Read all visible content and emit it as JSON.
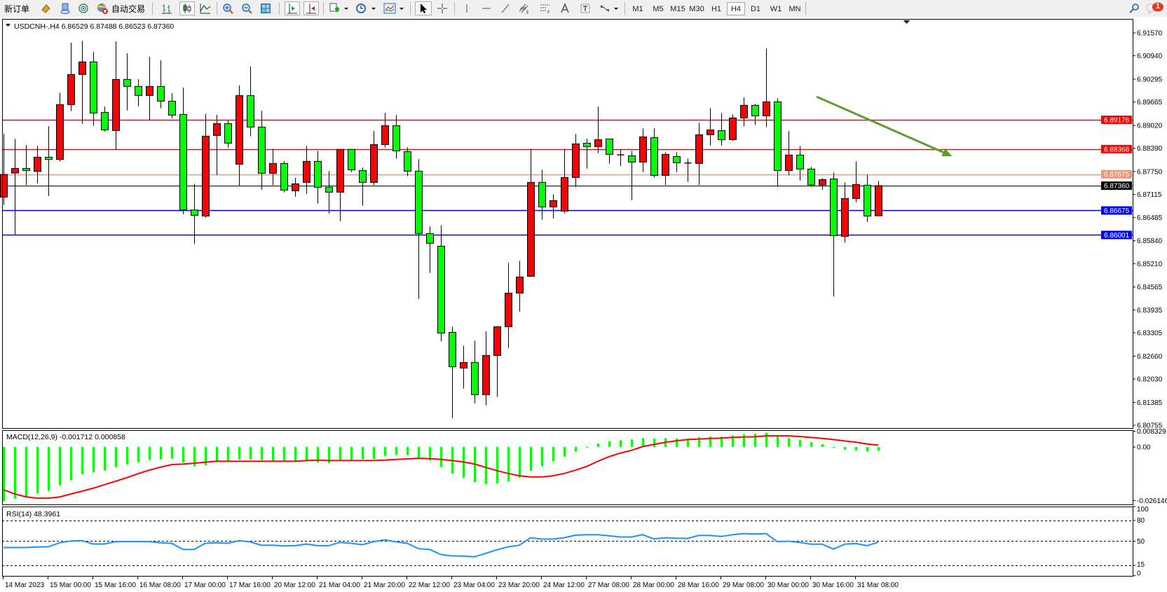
{
  "toolbar": {
    "new_order_label": "新订单",
    "auto_trading_label": "自动交易",
    "timeframes": [
      "M1",
      "M5",
      "M15",
      "M30",
      "H1",
      "H4",
      "D1",
      "W1",
      "MN"
    ],
    "active_timeframe": "H4",
    "notification_count": "1"
  },
  "chart": {
    "header": "USDCNH-,H4  6.86529 6.87488 6.86523 6.87360",
    "macd_label": "MACD(12,26,9) -0.001712 0.000858",
    "rsi_label": "RSI(14) 48.3961"
  },
  "chart_data": {
    "type": "candlestick",
    "symbol": "USDCNH-",
    "timeframe": "H4",
    "ohlc_fields": [
      "open",
      "high",
      "low",
      "close"
    ],
    "colors": {
      "bull": "#ff0000",
      "bear": "#00ff00",
      "outline": "#000000"
    },
    "candles": [
      [
        6.87044,
        6.88783,
        6.86832,
        6.87669
      ],
      [
        6.87708,
        6.88647,
        6.86014,
        6.87836
      ],
      [
        6.87836,
        6.88474,
        6.87373,
        6.87778
      ],
      [
        6.87753,
        6.88454,
        6.87424,
        6.88145
      ],
      [
        6.88145,
        6.89002,
        6.87077,
        6.88081
      ],
      [
        6.88081,
        6.89922,
        6.88023,
        6.89594
      ],
      [
        6.89594,
        6.913,
        6.89414,
        6.90424
      ],
      [
        6.90424,
        6.91351,
        6.89066,
        6.90772
      ],
      [
        6.90772,
        6.91049,
        6.89008,
        6.89362
      ],
      [
        6.89381,
        6.89542,
        6.88854,
        6.88899
      ],
      [
        6.88879,
        6.91332,
        6.88351,
        6.90289
      ],
      [
        6.90289,
        6.9101,
        6.89433,
        6.90096
      ],
      [
        6.90096,
        6.90296,
        6.89549,
        6.89845
      ],
      [
        6.89845,
        6.90914,
        6.89163,
        6.90096
      ],
      [
        6.90096,
        6.90817,
        6.89491,
        6.8969
      ],
      [
        6.8969,
        6.89909,
        6.89214,
        6.89304
      ],
      [
        6.89324,
        6.90064,
        6.86574,
        6.8669
      ],
      [
        6.8669,
        6.87411,
        6.8575,
        6.86542
      ],
      [
        6.86523,
        6.89343,
        6.86478,
        6.88725
      ],
      [
        6.88744,
        6.89311,
        6.87656,
        6.89072
      ],
      [
        6.89072,
        6.8915,
        6.88409,
        6.88532
      ],
      [
        6.87952,
        6.90122,
        6.87347,
        6.89845
      ],
      [
        6.89845,
        6.90643,
        6.88718,
        6.88976
      ],
      [
        6.88976,
        6.89427,
        6.8725,
        6.87701
      ],
      [
        6.87701,
        6.88377,
        6.87373,
        6.87972
      ],
      [
        6.87972,
        6.88036,
        6.87173,
        6.87238
      ],
      [
        6.87218,
        6.87572,
        6.87057,
        6.87411
      ],
      [
        6.8745,
        6.88454,
        6.87134,
        6.88029
      ],
      [
        6.88029,
        6.88319,
        6.86864,
        6.87315
      ],
      [
        6.87315,
        6.87759,
        6.86594,
        6.8718
      ],
      [
        6.8718,
        6.88358,
        6.86381,
        6.88358
      ],
      [
        6.88358,
        6.8837,
        6.87733,
        6.87798
      ],
      [
        6.87778,
        6.87855,
        6.86806,
        6.8745
      ],
      [
        6.8745,
        6.88866,
        6.87373,
        6.88493
      ],
      [
        6.88493,
        6.89368,
        6.88409,
        6.89014
      ],
      [
        6.89014,
        6.8931,
        6.881,
        6.88319
      ],
      [
        6.883,
        6.88416,
        6.87624,
        6.87759
      ],
      [
        6.87759,
        6.88087,
        6.84237,
        6.8604
      ],
      [
        6.8604,
        6.86233,
        6.84952,
        6.8577
      ],
      [
        6.85692,
        6.86272,
        6.83066,
        6.83297
      ],
      [
        6.83317,
        6.83471,
        6.80954,
        6.8237
      ],
      [
        6.82332,
        6.8295,
        6.81765,
        6.82486
      ],
      [
        6.82486,
        6.83085,
        6.8136,
        6.81598
      ],
      [
        6.81598,
        6.83342,
        6.81302,
        6.82679
      ],
      [
        6.82679,
        6.8349,
        6.81533,
        6.83471
      ],
      [
        6.83471,
        6.85229,
        6.82885,
        6.84398
      ],
      [
        6.84398,
        6.85287,
        6.8389,
        6.84842
      ],
      [
        6.84862,
        6.88377,
        6.84862,
        6.8745
      ],
      [
        6.8745,
        6.87798,
        6.8642,
        6.86774
      ],
      [
        6.86774,
        6.87122,
        6.86458,
        6.86948
      ],
      [
        6.86658,
        6.88377,
        6.86594,
        6.87585
      ],
      [
        6.87585,
        6.88782,
        6.87327,
        6.88512
      ],
      [
        6.88531,
        6.88654,
        6.8783,
        6.88435
      ],
      [
        6.88435,
        6.89536,
        6.88255,
        6.88628
      ],
      [
        6.88647,
        6.88647,
        6.87965,
        6.88222
      ],
      [
        6.88209,
        6.88358,
        6.87907,
        6.88209
      ],
      [
        6.88184,
        6.88319,
        6.8696,
        6.8801
      ],
      [
        6.8801,
        6.88937,
        6.87733,
        6.88705
      ],
      [
        6.88686,
        6.88937,
        6.87585,
        6.87643
      ],
      [
        6.87643,
        6.8828,
        6.87379,
        6.88222
      ],
      [
        6.88164,
        6.8828,
        6.87733,
        6.87991
      ],
      [
        6.87984,
        6.88106,
        6.87463,
        6.87984
      ],
      [
        6.87971,
        6.89091,
        6.87379,
        6.88763
      ],
      [
        6.88763,
        6.89497,
        6.88467,
        6.88898
      ],
      [
        6.88879,
        6.89362,
        6.88467,
        6.88628
      ],
      [
        6.88628,
        6.89323,
        6.88602,
        6.89227
      ],
      [
        6.89227,
        6.89787,
        6.88995,
        6.89574
      ],
      [
        6.89574,
        6.89613,
        6.89034,
        6.89285
      ],
      [
        6.89285,
        6.91139,
        6.88976,
        6.89671
      ],
      [
        6.89671,
        6.89767,
        6.87327,
        6.87778
      ],
      [
        6.87778,
        6.8886,
        6.87643,
        6.88203
      ],
      [
        6.88203,
        6.88454,
        6.87501,
        6.87817
      ],
      [
        6.87817,
        6.87875,
        6.87327,
        6.87379
      ],
      [
        6.87379,
        6.87566,
        6.8725,
        6.87527
      ],
      [
        6.87546,
        6.8772,
        6.84302,
        6.85982
      ],
      [
        6.85963,
        6.8745,
        6.85789,
        6.87006
      ],
      [
        6.87006,
        6.88029,
        6.86903,
        6.87392
      ],
      [
        6.87373,
        6.87662,
        6.86362,
        6.86523
      ],
      [
        6.86529,
        6.87488,
        6.86523,
        6.8736
      ]
    ],
    "price_range": [
      6.80755,
      6.9157
    ],
    "price_ticks": [
      "6.91570",
      "6.90940",
      "6.90295",
      "6.89665",
      "6.89020",
      "6.88390",
      "6.87750",
      "6.87115",
      "6.86485",
      "6.85840",
      "6.85210",
      "6.84565",
      "6.83935",
      "6.83305",
      "6.82660",
      "6.82030",
      "6.81385",
      "6.80755"
    ],
    "horizontal_lines": [
      {
        "price": "6.89176",
        "color": "#ff0000"
      },
      {
        "price": "6.88368",
        "color": "#ff0000"
      },
      {
        "price": "6.87675",
        "color": "#e9967a"
      },
      {
        "price": "6.87360",
        "color": "#000000"
      },
      {
        "price": "6.86675",
        "color": "#0000ff"
      },
      {
        "price": "6.86001",
        "color": "#0000ff"
      }
    ],
    "arrow": {
      "from": {
        "bar": 72.5,
        "price": 6.89813
      },
      "to": {
        "bar": 84.6,
        "price": 6.88171
      },
      "color": "#5a9e2f"
    },
    "time_labels": [
      "14 Mar 2023",
      "15 Mar 00:00",
      "15 Mar 16:00",
      "16 Mar 08:00",
      "17 Mar 00:00",
      "17 Mar 16:00",
      "20 Mar 12:00",
      "21 Mar 04:00",
      "21 Mar 20:00",
      "22 Mar 12:00",
      "23 Mar 04:00",
      "23 Mar 20:00",
      "24 Mar 12:00",
      "27 Mar 08:00",
      "28 Mar 00:00",
      "28 Mar 16:00",
      "29 Mar 08:00",
      "30 Mar 00:00",
      "30 Mar 16:00",
      "31 Mar 08:00"
    ],
    "macd": {
      "range": [
        -0.026146,
        0.008329
      ],
      "ticks": [
        "0.008329",
        "0.00",
        "-0.026146"
      ],
      "histogram_color": "#00ff00",
      "signal_color": "#ff0000",
      "main": [
        -0.02458,
        -0.02352,
        -0.02245,
        -0.02117,
        -0.02,
        -0.01745,
        -0.015,
        -0.01234,
        -0.01149,
        -0.01075,
        -0.00915,
        -0.00787,
        -0.00692,
        -0.00596,
        -0.00564,
        -0.00521,
        -0.00702,
        -0.00883,
        -0.0083,
        -0.00681,
        -0.00628,
        -0.00564,
        -0.00543,
        -0.00596,
        -0.00617,
        -0.00628,
        -0.00649,
        -0.00628,
        -0.00702,
        -0.00723,
        -0.00617,
        -0.00596,
        -0.00543,
        -0.00543,
        -0.00404,
        -0.00362,
        -0.00362,
        -0.00489,
        -0.00617,
        -0.00915,
        -0.01203,
        -0.01394,
        -0.01607,
        -0.01681,
        -0.0166,
        -0.01553,
        -0.01394,
        -0.01075,
        -0.00862,
        -0.00649,
        -0.00436,
        -0.00202,
        -0.00011,
        0.0016,
        0.00255,
        0.00309,
        0.00351,
        0.00415,
        0.00383,
        0.00415,
        0.00383,
        0.00394,
        0.00447,
        0.00479,
        0.00479,
        0.00521,
        0.00575,
        0.00607,
        0.00639,
        0.005,
        0.00415,
        0.0033,
        0.00224,
        0.00128,
        -0.00011,
        -0.00117,
        -0.00149,
        -0.00202,
        -0.001712
      ],
      "signal": [
        -0.01947,
        -0.02138,
        -0.02266,
        -0.0233,
        -0.0233,
        -0.02277,
        -0.02138,
        -0.02011,
        -0.01873,
        -0.01713,
        -0.01553,
        -0.01394,
        -0.01213,
        -0.01053,
        -0.00915,
        -0.00798,
        -0.00777,
        -0.00734,
        -0.00692,
        -0.00649,
        -0.00649,
        -0.00649,
        -0.00649,
        -0.00649,
        -0.00649,
        -0.00649,
        -0.00649,
        -0.00617,
        -0.00596,
        -0.00617,
        -0.00617,
        -0.00617,
        -0.00617,
        -0.00617,
        -0.00596,
        -0.00564,
        -0.00543,
        -0.00511,
        -0.00532,
        -0.00564,
        -0.00617,
        -0.00681,
        -0.00777,
        -0.00926,
        -0.01075,
        -0.01203,
        -0.01309,
        -0.01362,
        -0.01362,
        -0.01309,
        -0.01203,
        -0.01053,
        -0.00883,
        -0.00649,
        -0.00436,
        -0.00277,
        -0.00149,
        0.00021,
        0.00117,
        0.00213,
        0.00288,
        0.00341,
        0.00362,
        0.00394,
        0.00404,
        0.00436,
        0.00458,
        0.00468,
        0.00511,
        0.00511,
        0.00511,
        0.00479,
        0.00436,
        0.00394,
        0.00341,
        0.00277,
        0.00224,
        0.00139,
        0.000858
      ]
    },
    "rsi": {
      "range": [
        0,
        100
      ],
      "ticks": [
        "100",
        "80",
        "50",
        "15",
        "0"
      ],
      "levels": [
        80,
        50,
        15
      ],
      "color": "#1e90ff",
      "values": [
        40.7,
        40.7,
        40.7,
        41.4,
        41.8,
        47.5,
        50.2,
        50.8,
        45.8,
        45.8,
        49.2,
        49.2,
        49.2,
        49.2,
        47.5,
        46.8,
        38.0,
        38.0,
        46.8,
        47.5,
        46.8,
        50.8,
        48.8,
        44.1,
        44.1,
        43.1,
        43.4,
        45.8,
        43.4,
        43.4,
        48.1,
        46.8,
        44.8,
        49.2,
        51.9,
        48.8,
        46.8,
        39.0,
        38.0,
        30.6,
        28.6,
        28.3,
        27.3,
        32.3,
        37.4,
        41.7,
        44.1,
        54.9,
        52.9,
        52.9,
        54.9,
        58.6,
        59.3,
        59.3,
        57.6,
        55.9,
        55.9,
        59.3,
        53.2,
        54.9,
        54.2,
        53.9,
        58.2,
        58.2,
        56.6,
        59.3,
        60.9,
        60.3,
        60.9,
        49.2,
        49.8,
        48.1,
        45.5,
        45.5,
        38.4,
        45.5,
        46.5,
        43.4,
        48.3961
      ]
    }
  }
}
